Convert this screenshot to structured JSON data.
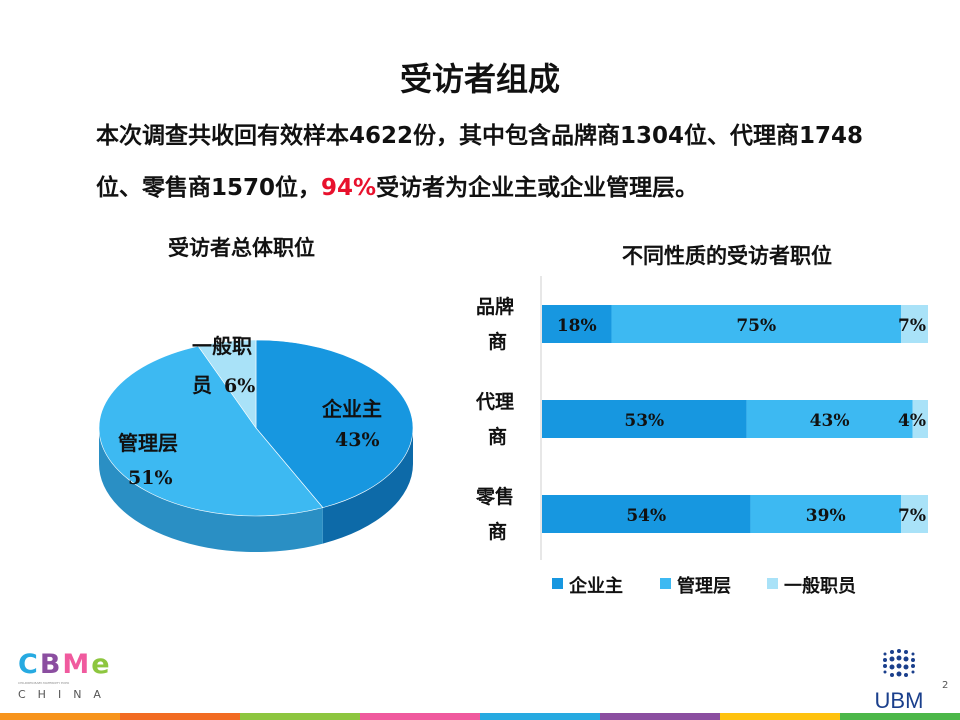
{
  "slide": {
    "title": "受访者组成",
    "summary": {
      "part1": "本次调查共收回有效样本4622份，其中包含品牌商1304位、代理商1748位、零售商1570位，",
      "highlight": "94%",
      "part2": "受访者为企业主或企业管理层。"
    },
    "page_number": "2"
  },
  "logos": {
    "cbme": {
      "letters": [
        "C",
        "B",
        "M",
        "e"
      ],
      "tagline": "CHILDREN·BABY·MATERNITY EXPO",
      "sub": "CHINA"
    },
    "ubm": {
      "text": "UBM"
    }
  },
  "colors": {
    "owner": "#1797e0",
    "manager": "#3db9f2",
    "staff": "#a9e2f8",
    "highlight": "#e8112d",
    "footer": [
      "#f7941d",
      "#f26b22",
      "#8dc63f",
      "#f05a9e",
      "#27aae1",
      "#8b4ea0",
      "#ffc20e",
      "#4cb749"
    ]
  },
  "chart_data": [
    {
      "type": "pie",
      "title": "受访者总体职位",
      "labels": [
        "企业主",
        "管理层",
        "一般职员"
      ],
      "values": [
        43,
        51,
        6
      ],
      "value_labels": [
        "43%",
        "51%",
        "6%"
      ],
      "style": "3d"
    },
    {
      "type": "bar",
      "orientation": "horizontal",
      "stacked": "percent",
      "title": "不同性质的受访者职位",
      "categories": [
        "品牌商",
        "代理商",
        "零售商"
      ],
      "series": [
        {
          "name": "企业主",
          "values": [
            18,
            53,
            54
          ]
        },
        {
          "name": "管理层",
          "values": [
            75,
            43,
            39
          ]
        },
        {
          "name": "一般职员",
          "values": [
            7,
            4,
            7
          ]
        }
      ],
      "value_format": "percent",
      "legend": "bottom",
      "xlim": [
        0,
        100
      ],
      "grid": false
    }
  ]
}
